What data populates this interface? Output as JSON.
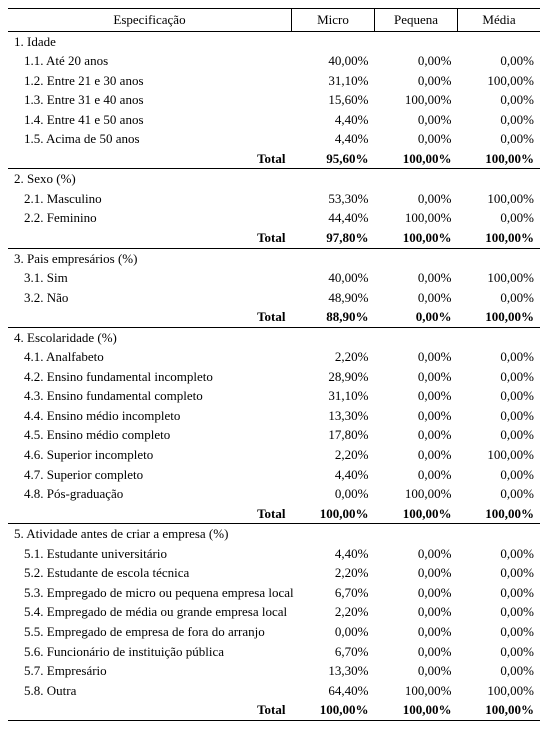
{
  "columns": [
    "Especificação",
    "Micro",
    "Pequena",
    "Média"
  ],
  "sections": [
    {
      "title": "1. Idade",
      "rows": [
        {
          "label": "1.1. Até 20 anos",
          "vals": [
            "40,00%",
            "0,00%",
            "0,00%"
          ]
        },
        {
          "label": "1.2. Entre 21 e 30 anos",
          "vals": [
            "31,10%",
            "0,00%",
            "100,00%"
          ]
        },
        {
          "label": "1.3. Entre 31 e 40 anos",
          "vals": [
            "15,60%",
            "100,00%",
            "0,00%"
          ]
        },
        {
          "label": "1.4. Entre 41 e 50 anos",
          "vals": [
            "4,40%",
            "0,00%",
            "0,00%"
          ]
        },
        {
          "label": "1.5. Acima de 50 anos",
          "vals": [
            "4,40%",
            "0,00%",
            "0,00%"
          ]
        }
      ],
      "total": {
        "label": "Total",
        "vals": [
          "95,60%",
          "100,00%",
          "100,00%"
        ]
      }
    },
    {
      "title": "2. Sexo (%)",
      "rows": [
        {
          "label": "2.1. Masculino",
          "vals": [
            "53,30%",
            "0,00%",
            "100,00%"
          ]
        },
        {
          "label": "2.2. Feminino",
          "vals": [
            "44,40%",
            "100,00%",
            "0,00%"
          ]
        }
      ],
      "total": {
        "label": "Total",
        "vals": [
          "97,80%",
          "100,00%",
          "100,00%"
        ]
      }
    },
    {
      "title": "3. Pais empresários (%)",
      "rows": [
        {
          "label": "3.1. Sim",
          "vals": [
            "40,00%",
            "0,00%",
            "100,00%"
          ]
        },
        {
          "label": "3.2. Não",
          "vals": [
            "48,90%",
            "0,00%",
            "0,00%"
          ]
        }
      ],
      "total": {
        "label": "Total",
        "vals": [
          "88,90%",
          "0,00%",
          "100,00%"
        ]
      }
    },
    {
      "title": "4. Escolaridade (%)",
      "rows": [
        {
          "label": "4.1. Analfabeto",
          "vals": [
            "2,20%",
            "0,00%",
            "0,00%"
          ]
        },
        {
          "label": "4.2. Ensino fundamental incompleto",
          "vals": [
            "28,90%",
            "0,00%",
            "0,00%"
          ]
        },
        {
          "label": "4.3. Ensino fundamental completo",
          "vals": [
            "31,10%",
            "0,00%",
            "0,00%"
          ]
        },
        {
          "label": "4.4. Ensino médio incompleto",
          "vals": [
            "13,30%",
            "0,00%",
            "0,00%"
          ]
        },
        {
          "label": "4.5. Ensino médio completo",
          "vals": [
            "17,80%",
            "0,00%",
            "0,00%"
          ]
        },
        {
          "label": "4.6. Superior incompleto",
          "vals": [
            "2,20%",
            "0,00%",
            "100,00%"
          ]
        },
        {
          "label": "4.7. Superior completo",
          "vals": [
            "4,40%",
            "0,00%",
            "0,00%"
          ]
        },
        {
          "label": "4.8. Pós-graduação",
          "vals": [
            "0,00%",
            "100,00%",
            "0,00%"
          ]
        }
      ],
      "total": {
        "label": "Total",
        "vals": [
          "100,00%",
          "100,00%",
          "100,00%"
        ]
      }
    },
    {
      "title": "5. Atividade antes de criar a empresa (%)",
      "rows": [
        {
          "label": "5.1. Estudante universitário",
          "vals": [
            "4,40%",
            "0,00%",
            "0,00%"
          ]
        },
        {
          "label": "5.2. Estudante de escola técnica",
          "vals": [
            "2,20%",
            "0,00%",
            "0,00%"
          ]
        },
        {
          "label": "5.3. Empregado de micro ou pequena empresa local",
          "vals": [
            "6,70%",
            "0,00%",
            "0,00%"
          ]
        },
        {
          "label": "5.4. Empregado de média ou grande empresa local",
          "vals": [
            "2,20%",
            "0,00%",
            "0,00%"
          ]
        },
        {
          "label": "5.5. Empregado de empresa de fora do arranjo",
          "vals": [
            "0,00%",
            "0,00%",
            "0,00%"
          ]
        },
        {
          "label": "5.6. Funcionário de instituição pública",
          "vals": [
            "6,70%",
            "0,00%",
            "0,00%"
          ]
        },
        {
          "label": "5.7. Empresário",
          "vals": [
            "13,30%",
            "0,00%",
            "0,00%"
          ]
        },
        {
          "label": "5.8. Outra",
          "vals": [
            "64,40%",
            "100,00%",
            "100,00%"
          ]
        }
      ],
      "total": {
        "label": "Total",
        "vals": [
          "100,00%",
          "100,00%",
          "100,00%"
        ]
      }
    }
  ]
}
